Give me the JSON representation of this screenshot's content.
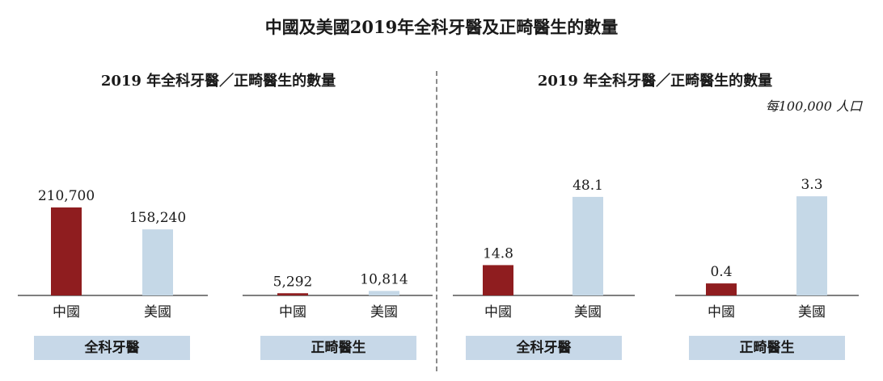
{
  "title": "中國及美國2019年全科牙醫及正畸醫生的數量",
  "colors": {
    "china": "#8f1d1f",
    "usa": "#c5d8e7",
    "axis": "#555555",
    "label_bg": "#c7d8e8"
  },
  "chart_data": [
    {
      "type": "bar",
      "title": "2019 年全科牙醫／正畸醫生的數量",
      "ylim": [
        0,
        290000
      ],
      "groups": [
        {
          "label": "全科牙醫",
          "categories": [
            "中國",
            "美國"
          ],
          "values": [
            210700,
            158240
          ],
          "value_labels": [
            "210,700",
            "158,240"
          ]
        },
        {
          "label": "正畸醫生",
          "categories": [
            "中國",
            "美國"
          ],
          "values": [
            5292,
            10814
          ],
          "value_labels": [
            "5,292",
            "10,814"
          ]
        }
      ]
    },
    {
      "type": "bar",
      "title": "2019 年全科牙醫／正畸醫生的數量",
      "unit": "每100,000 人口",
      "groups": [
        {
          "label": "全科牙醫",
          "categories": [
            "中國",
            "美國"
          ],
          "values": [
            14.8,
            48.1
          ],
          "value_labels": [
            "14.8",
            "48.1"
          ],
          "ylim": [
            0,
            59.1
          ]
        },
        {
          "label": "正畸醫生",
          "categories": [
            "中國",
            "美國"
          ],
          "values": [
            0.4,
            3.3
          ],
          "value_labels": [
            "0.4",
            "3.3"
          ],
          "ylim": [
            0,
            4.03
          ]
        }
      ]
    }
  ]
}
